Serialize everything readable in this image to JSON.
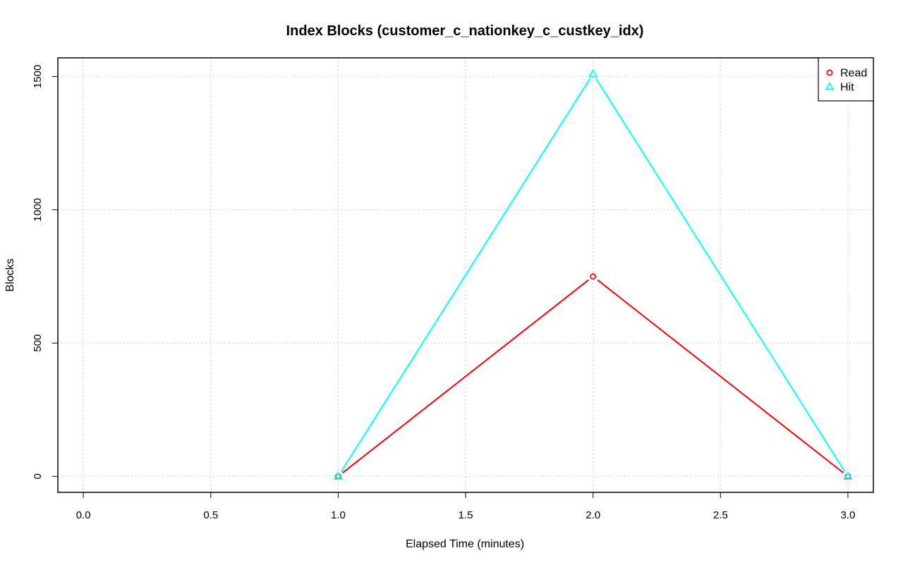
{
  "chart_data": {
    "type": "line",
    "title": "Index Blocks (customer_c_nationkey_c_custkey_idx)",
    "xlabel": "Elapsed Time (minutes)",
    "ylabel": "Blocks",
    "xlim": [
      -0.1,
      3.1
    ],
    "ylim": [
      -60,
      1570
    ],
    "xticks": [
      0,
      0.5,
      1,
      1.5,
      2,
      2.5,
      3
    ],
    "xtick_labels": [
      "0.0",
      "0.5",
      "1.0",
      "1.5",
      "2.0",
      "2.5",
      "3.0"
    ],
    "yticks": [
      0,
      500,
      1000,
      1500
    ],
    "ytick_labels": [
      "0",
      "500",
      "1000",
      "1500"
    ],
    "grid": true,
    "legend_position": "top-right",
    "x": [
      1,
      2,
      3
    ],
    "series": [
      {
        "name": "Read",
        "values": [
          0,
          750,
          0
        ],
        "color": "#ff0000",
        "marker": "circle"
      },
      {
        "name": "Hit",
        "values": [
          0,
          1510,
          0
        ],
        "color": "#00ffff",
        "marker": "triangle"
      }
    ]
  }
}
